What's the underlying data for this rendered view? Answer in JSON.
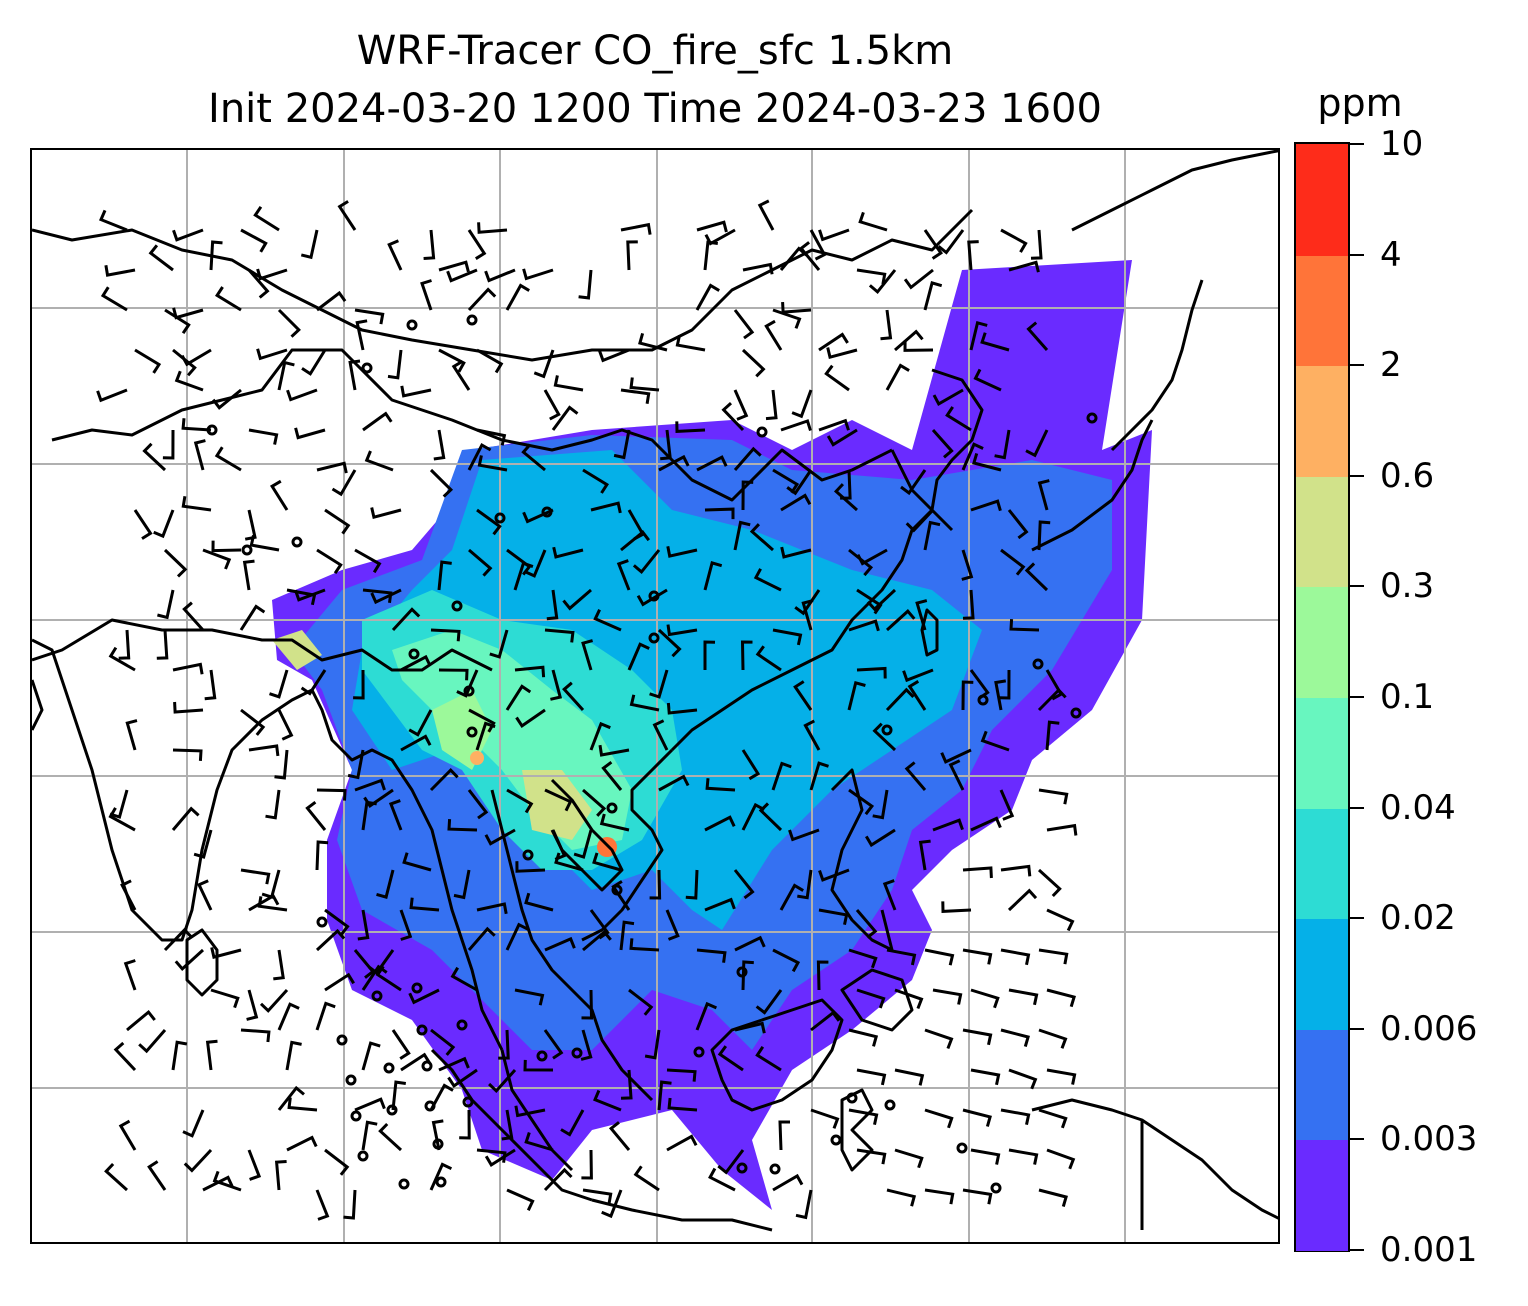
{
  "title": {
    "line1": "WRF-Tracer CO_fire_sfc 1.5km",
    "line2": "Init 2024-03-20 1200 Time 2024-03-23 1600"
  },
  "colorbar": {
    "unit": "ppm",
    "levels": [
      "0.001",
      "0.003",
      "0.006",
      "0.02",
      "0.04",
      "0.1",
      "0.3",
      "0.6",
      "2",
      "4",
      "10"
    ],
    "colors": [
      "#6a2bff",
      "#3571f2",
      "#05b0e8",
      "#2ddcd4",
      "#68f6bf",
      "#9cf99a",
      "#d1e28a",
      "#feb062",
      "#ff7439",
      "#fe2c1a"
    ]
  },
  "map": {
    "gridlines": true,
    "coastlines": true,
    "wind_barbs": true
  }
}
